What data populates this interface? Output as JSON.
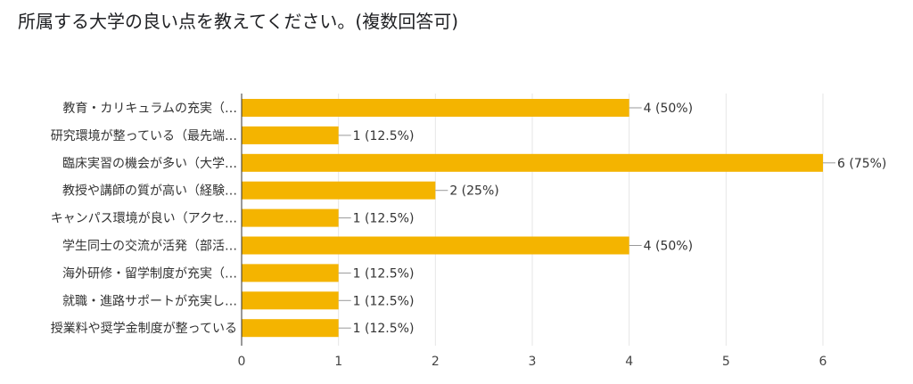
{
  "chart_data": {
    "type": "bar",
    "orientation": "horizontal",
    "title": "所属する大学の良い点を教えてください。(複数回答可)",
    "categories": [
      "教育・カリキュラムの充実（…",
      "研究環境が整っている（最先端…",
      "臨床実習の機会が多い（大学…",
      "教授や講師の質が高い（経験…",
      "キャンパス環境が良い（アクセ…",
      "学生同士の交流が活発（部活…",
      "海外研修・留学制度が充実（…",
      "就職・進路サポートが充実し…",
      "授業料や奨学金制度が整っている"
    ],
    "values": [
      4,
      1,
      6,
      2,
      1,
      4,
      1,
      1,
      1
    ],
    "data_labels": [
      "4 (50%)",
      "1 (12.5%)",
      "6 (75%)",
      "2 (25%)",
      "1 (12.5%)",
      "4 (50%)",
      "1 (12.5%)",
      "1 (12.5%)",
      "1 (12.5%)"
    ],
    "xlim": [
      0,
      6
    ],
    "xticks": [
      "0",
      "1",
      "2",
      "3",
      "4",
      "5",
      "6"
    ],
    "grid": true,
    "bar_color": "#F4B400",
    "xlabel": "",
    "ylabel": ""
  }
}
